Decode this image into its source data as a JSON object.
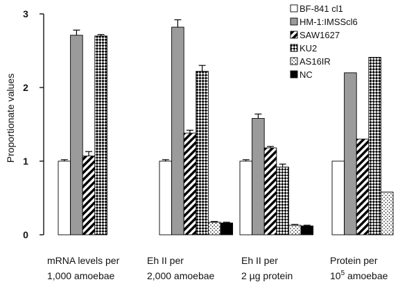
{
  "chart_data": {
    "type": "bar",
    "ylabel": "Proportionate values",
    "ylim": [
      0,
      3
    ],
    "yticks": [
      0,
      1,
      2,
      3
    ],
    "grid": false,
    "legend_position": "top-right",
    "categories": [
      {
        "line1": "mRNA levels per",
        "line2": "1,000 amoebae"
      },
      {
        "line1": "Eh II per",
        "line2": "2,000 amoebae"
      },
      {
        "line1": "Eh II per",
        "line2": "2 µg protein"
      },
      {
        "line1": "Protein per",
        "line2": "10",
        "line2_sup": "5",
        "line2_tail": " amoebae"
      }
    ],
    "series": [
      {
        "name": "BF-841 cl1",
        "pattern": "white",
        "values": [
          1.0,
          1.0,
          1.0,
          1.0
        ],
        "errors": [
          0.02,
          0.02,
          0.02,
          null
        ]
      },
      {
        "name": "HM-1:IMSScl6",
        "pattern": "gray",
        "values": [
          2.71,
          2.82,
          1.58,
          2.2
        ],
        "errors": [
          0.07,
          0.1,
          0.06,
          null
        ]
      },
      {
        "name": "SAW1627",
        "pattern": "diagonal-stripes",
        "values": [
          1.07,
          1.38,
          1.18,
          1.3
        ],
        "errors": [
          0.06,
          0.04,
          0.02,
          null
        ]
      },
      {
        "name": "KU2",
        "pattern": "checkerboard",
        "values": [
          2.7,
          2.22,
          0.92,
          2.41
        ],
        "errors": [
          0.02,
          0.08,
          0.04,
          null
        ]
      },
      {
        "name": "AS16IR",
        "pattern": "dots",
        "values": [
          null,
          0.17,
          0.13,
          0.58
        ],
        "errors": [
          null,
          0.01,
          0.01,
          null
        ]
      },
      {
        "name": "NC",
        "pattern": "black",
        "values": [
          null,
          0.16,
          0.12,
          null
        ],
        "errors": [
          null,
          0.01,
          0.01,
          null
        ]
      }
    ]
  }
}
